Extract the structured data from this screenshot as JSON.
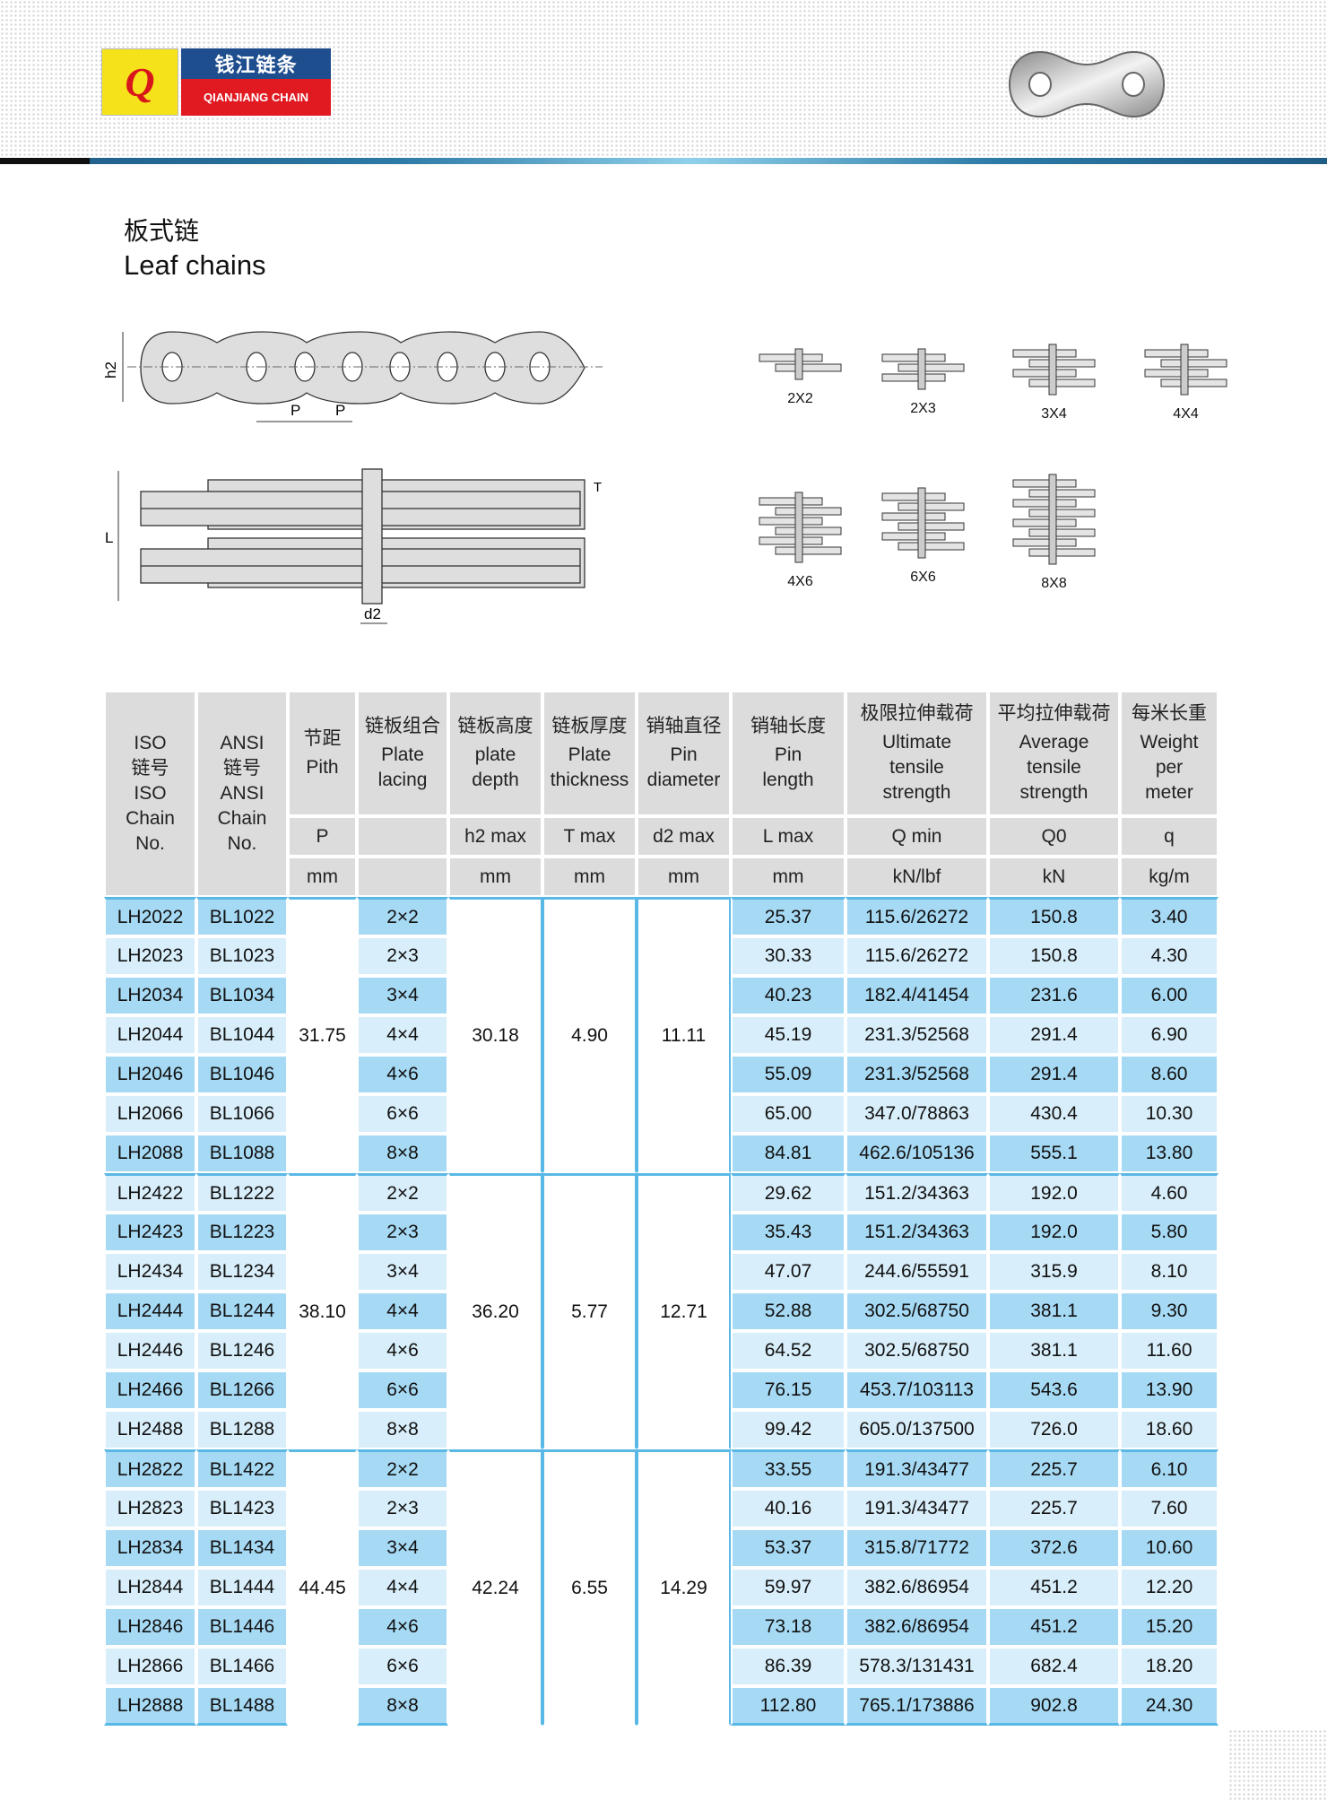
{
  "brand": {
    "logo_letters": "QJ",
    "name_cn": "钱江链条",
    "name_en": "QIANJIANG CHAIN"
  },
  "title": {
    "cn": "板式链",
    "en": "Leaf chains"
  },
  "diagram": {
    "labels": {
      "h2": "h2",
      "p1": "P",
      "p2": "P",
      "L": "L",
      "T": "T",
      "d2": "d2"
    }
  },
  "lacings": [
    "2X2",
    "2X3",
    "3X4",
    "4X4",
    "4X6",
    "6X6",
    "8X8"
  ],
  "table": {
    "headers": [
      {
        "cn": "",
        "en": "ISO\n链号\nISO\nChain\nNo.",
        "sym": "",
        "unit": ""
      },
      {
        "cn": "",
        "en": "ANSI\n链号\nANSI\nChain\nNo.",
        "sym": "",
        "unit": ""
      },
      {
        "cn": "节距",
        "en": "Pith",
        "sym": "P",
        "unit": "mm"
      },
      {
        "cn": "链板组合",
        "en": "Plate\nlacing",
        "sym": "",
        "unit": ""
      },
      {
        "cn": "链板高度",
        "en": "plate\ndepth",
        "sym": "h2 max",
        "unit": "mm"
      },
      {
        "cn": "链板厚度",
        "en": "Plate\nthickness",
        "sym": "T max",
        "unit": "mm"
      },
      {
        "cn": "销轴直径",
        "en": "Pin\ndiameter",
        "sym": "d2 max",
        "unit": "mm"
      },
      {
        "cn": "销轴长度",
        "en": "Pin\nlength",
        "sym": "L max",
        "unit": "mm"
      },
      {
        "cn": "极限拉伸载荷",
        "en": "Ultimate\ntensile\nstrength",
        "sym": "Q min",
        "unit": "kN/lbf"
      },
      {
        "cn": "平均拉伸载荷",
        "en": "Average\ntensile\nstrength",
        "sym": "Q0",
        "unit": "kN"
      },
      {
        "cn": "每米长重",
        "en": "Weight\nper\nmeter",
        "sym": "q",
        "unit": "kg/m"
      }
    ],
    "groups": [
      {
        "pitch": "31.75",
        "h2": "30.18",
        "T": "4.90",
        "d2": "11.11",
        "rows": [
          [
            "LH2022",
            "BL1022",
            "2×2",
            "25.37",
            "115.6/26272",
            "150.8",
            "3.40"
          ],
          [
            "LH2023",
            "BL1023",
            "2×3",
            "30.33",
            "115.6/26272",
            "150.8",
            "4.30"
          ],
          [
            "LH2034",
            "BL1034",
            "3×4",
            "40.23",
            "182.4/41454",
            "231.6",
            "6.00"
          ],
          [
            "LH2044",
            "BL1044",
            "4×4",
            "45.19",
            "231.3/52568",
            "291.4",
            "6.90"
          ],
          [
            "LH2046",
            "BL1046",
            "4×6",
            "55.09",
            "231.3/52568",
            "291.4",
            "8.60"
          ],
          [
            "LH2066",
            "BL1066",
            "6×6",
            "65.00",
            "347.0/78863",
            "430.4",
            "10.30"
          ],
          [
            "LH2088",
            "BL1088",
            "8×8",
            "84.81",
            "462.6/105136",
            "555.1",
            "13.80"
          ]
        ]
      },
      {
        "pitch": "38.10",
        "h2": "36.20",
        "T": "5.77",
        "d2": "12.71",
        "rows": [
          [
            "LH2422",
            "BL1222",
            "2×2",
            "29.62",
            "151.2/34363",
            "192.0",
            "4.60"
          ],
          [
            "LH2423",
            "BL1223",
            "2×3",
            "35.43",
            "151.2/34363",
            "192.0",
            "5.80"
          ],
          [
            "LH2434",
            "BL1234",
            "3×4",
            "47.07",
            "244.6/55591",
            "315.9",
            "8.10"
          ],
          [
            "LH2444",
            "BL1244",
            "4×4",
            "52.88",
            "302.5/68750",
            "381.1",
            "9.30"
          ],
          [
            "LH2446",
            "BL1246",
            "4×6",
            "64.52",
            "302.5/68750",
            "381.1",
            "11.60"
          ],
          [
            "LH2466",
            "BL1266",
            "6×6",
            "76.15",
            "453.7/103113",
            "543.6",
            "13.90"
          ],
          [
            "LH2488",
            "BL1288",
            "8×8",
            "99.42",
            "605.0/137500",
            "726.0",
            "18.60"
          ]
        ]
      },
      {
        "pitch": "44.45",
        "h2": "42.24",
        "T": "6.55",
        "d2": "14.29",
        "rows": [
          [
            "LH2822",
            "BL1422",
            "2×2",
            "33.55",
            "191.3/43477",
            "225.7",
            "6.10"
          ],
          [
            "LH2823",
            "BL1423",
            "2×3",
            "40.16",
            "191.3/43477",
            "225.7",
            "7.60"
          ],
          [
            "LH2834",
            "BL1434",
            "3×4",
            "53.37",
            "315.8/71772",
            "372.6",
            "10.60"
          ],
          [
            "LH2844",
            "BL1444",
            "4×4",
            "59.97",
            "382.6/86954",
            "451.2",
            "12.20"
          ],
          [
            "LH2846",
            "BL1446",
            "4×6",
            "73.18",
            "382.6/86954",
            "451.2",
            "15.20"
          ],
          [
            "LH2866",
            "BL1466",
            "6×6",
            "86.39",
            "578.3/131431",
            "682.4",
            "18.20"
          ],
          [
            "LH2888",
            "BL1488",
            "8×8",
            "112.80",
            "765.1/173886",
            "902.8",
            "24.30"
          ]
        ]
      }
    ]
  },
  "colors": {
    "row_dark": "#a6d9f4",
    "row_light": "#d8eefa",
    "header": "#dcdcdc",
    "rule": "#5ab8e6"
  }
}
